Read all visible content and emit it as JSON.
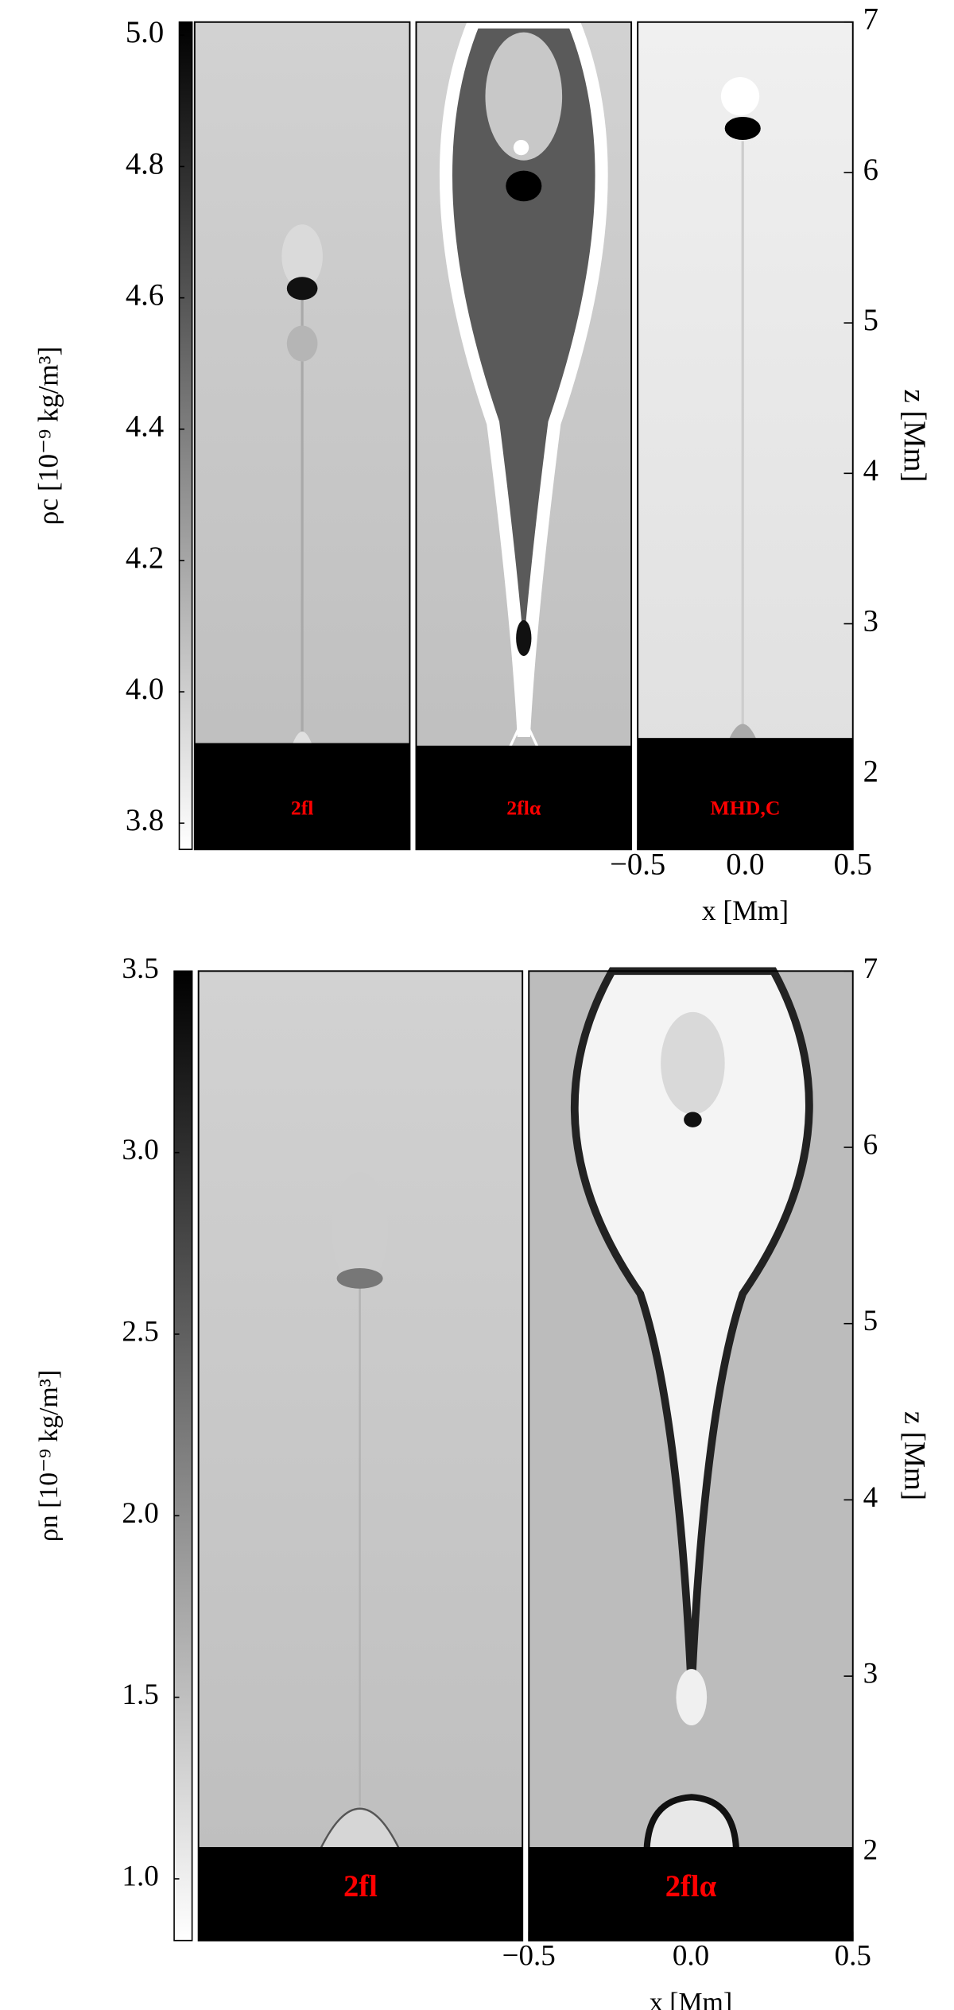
{
  "chart_data": [
    {
      "type": "image",
      "colorbar": {
        "label": "ρc [10⁻⁹ kg/m³]",
        "lim": [
          3.76,
          5.02
        ],
        "ticks": [
          {
            "value": 5.0,
            "label": "5.0"
          },
          4.8,
          4.6,
          4.4,
          4.2,
          {
            "value": 4.0,
            "label": "4.0"
          },
          3.8
        ],
        "colors": [
          "#ffffff",
          "#000000"
        ]
      },
      "panels": [
        "2fl",
        "2flα",
        "MHD,C"
      ],
      "label_color": "#ff0000",
      "ylabel": "z [Mm]",
      "ylim": [
        1.5,
        7
      ],
      "yticks": [
        2,
        3,
        4,
        5,
        6,
        7
      ],
      "xlabel": "x [Mm]",
      "xlim": [
        -0.5,
        0.5
      ],
      "xticks": [
        {
          "value": -0.5,
          "label": "−0.5"
        },
        {
          "value": 0,
          "label": "0.0"
        },
        0.5
      ]
    },
    {
      "type": "image",
      "colorbar": {
        "label": "ρn [10⁻⁹ kg/m³]",
        "lim": [
          0.83,
          3.5
        ],
        "ticks": [
          3.5,
          {
            "value": 3.0,
            "label": "3.0"
          },
          2.5,
          {
            "value": 2.0,
            "label": "2.0"
          },
          1.5,
          {
            "value": 1.0,
            "label": "1.0"
          }
        ],
        "colors": [
          "#ffffff",
          "#000000"
        ]
      },
      "panels": [
        "2fl",
        "2flα"
      ],
      "label_color": "#ff0000",
      "ylabel": "z [Mm]",
      "ylim": [
        1.5,
        7
      ],
      "yticks": [
        2,
        3,
        4,
        5,
        6,
        7
      ],
      "xlabel": "x [Mm]",
      "xlim": [
        -0.5,
        0.5
      ],
      "xticks": [
        {
          "value": -0.5,
          "label": "−0.5"
        },
        {
          "value": 0,
          "label": "0.0"
        },
        0.5
      ]
    }
  ]
}
